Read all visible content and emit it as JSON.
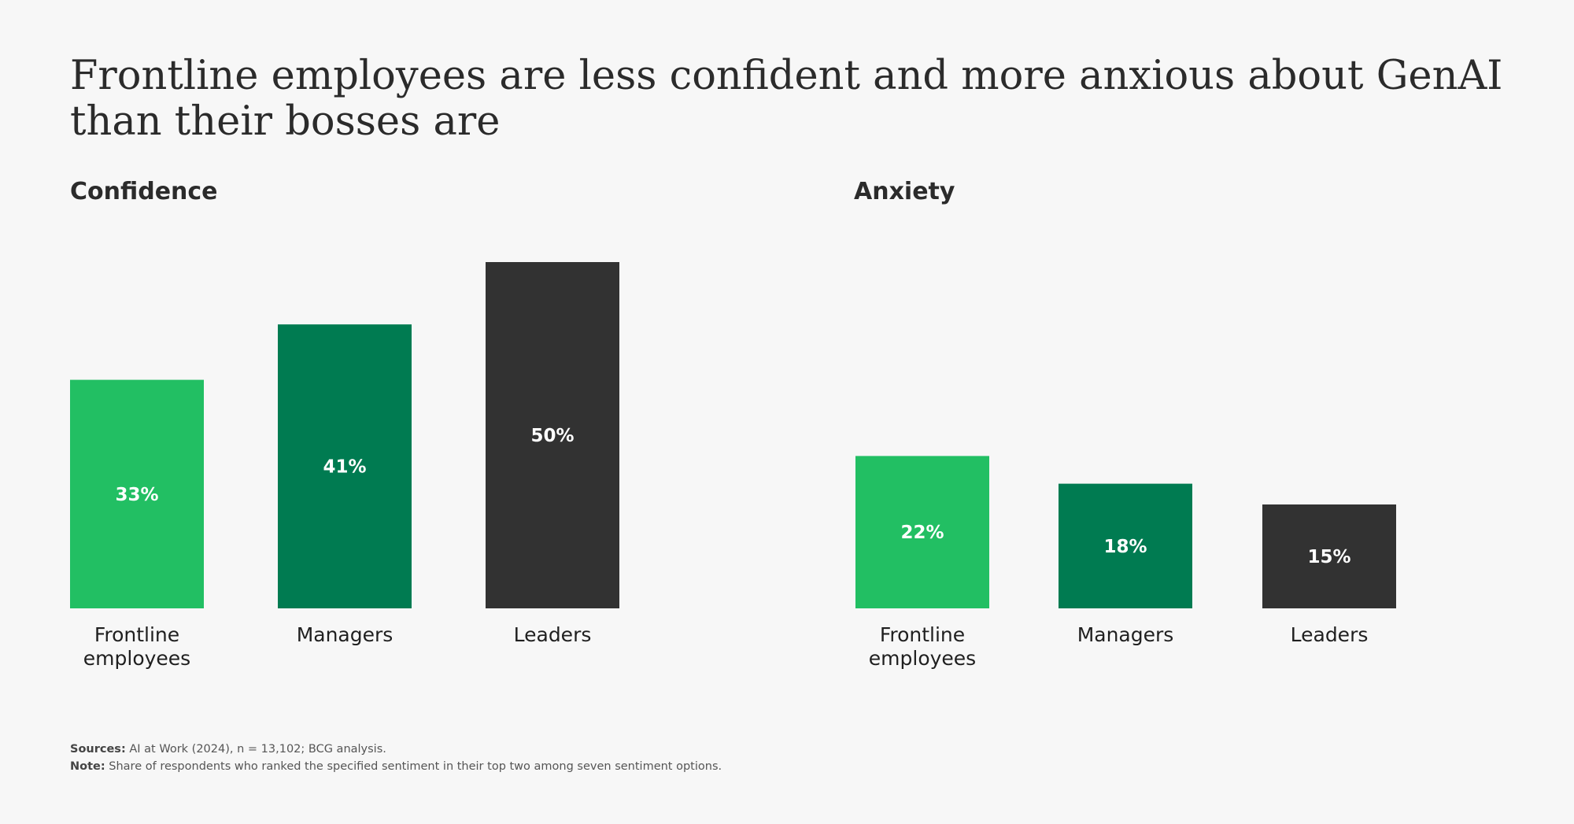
{
  "title": "Frontline employees are less confident and more anxious about GenAI than their bosses are",
  "chart_data": [
    {
      "type": "bar",
      "title": "Confidence",
      "categories": [
        "Frontline employees",
        "Managers",
        "Leaders"
      ],
      "values": [
        33,
        41,
        50
      ],
      "value_labels": [
        "33%",
        "41%",
        "50%"
      ],
      "colors": [
        "#22bf63",
        "#007b51",
        "#323232"
      ],
      "ylim": [
        0,
        50
      ],
      "grid": false,
      "legend": false
    },
    {
      "type": "bar",
      "title": "Anxiety",
      "categories": [
        "Frontline employees",
        "Managers",
        "Leaders"
      ],
      "values": [
        22,
        18,
        15
      ],
      "value_labels": [
        "22%",
        "18%",
        "15%"
      ],
      "colors": [
        "#22bf63",
        "#007b51",
        "#323232"
      ],
      "ylim": [
        0,
        50
      ],
      "grid": false,
      "legend": false
    }
  ],
  "footer": {
    "sources_label": "Sources:",
    "sources_text": "AI at Work (2024), n = 13,102; BCG analysis.",
    "note_label": "Note:",
    "note_text": "Share of respondents who ranked the specified sentiment in their top two among seven sentiment options."
  }
}
